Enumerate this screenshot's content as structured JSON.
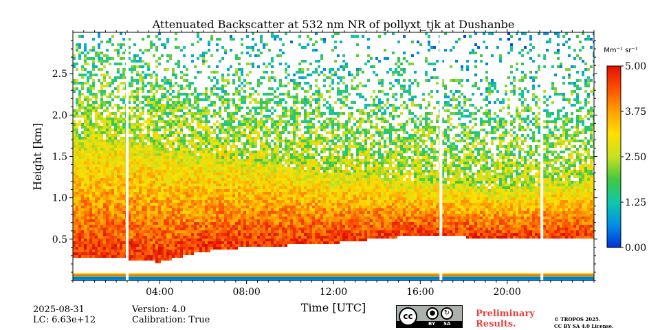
{
  "chart_data": {
    "type": "heatmap",
    "title": "Attenuated Backscatter at 532 nm NR of pollyxt_tjk at Dushanbe",
    "xlabel": "Time [UTC]",
    "ylabel": "Height [km]",
    "xlim_hours": [
      0,
      24
    ],
    "ylim_km": [
      0,
      3.0
    ],
    "x_ticks": [
      {
        "value": 4,
        "label": "04:00"
      },
      {
        "value": 8,
        "label": "08:00"
      },
      {
        "value": 12,
        "label": "12:00"
      },
      {
        "value": 16,
        "label": "16:00"
      },
      {
        "value": 20,
        "label": "20:00"
      }
    ],
    "y_ticks": [
      {
        "value": 0.5,
        "label": "0.5"
      },
      {
        "value": 1.0,
        "label": "1.0"
      },
      {
        "value": 1.5,
        "label": "1.5"
      },
      {
        "value": 2.0,
        "label": "2.0"
      },
      {
        "value": 2.5,
        "label": "2.5"
      }
    ],
    "colorbar": {
      "unit_label": "Mm⁻¹ sr⁻¹",
      "range": [
        0.0,
        5.0
      ],
      "ticks": [
        {
          "value": 0.0,
          "label": "0.00"
        },
        {
          "value": 1.25,
          "label": "1.25"
        },
        {
          "value": 2.5,
          "label": "2.50"
        },
        {
          "value": 3.75,
          "label": "3.75"
        },
        {
          "value": 5.0,
          "label": "5.00"
        }
      ],
      "colormap": [
        "#0030d8",
        "#0090e8",
        "#10c8a8",
        "#40c840",
        "#c8e020",
        "#ffe000",
        "#ffa000",
        "#ff5000",
        "#e01000"
      ]
    },
    "data_gaps_hours": [
      2.5,
      16.95,
      21.6
    ],
    "profile_features": [
      {
        "hour": 0,
        "aerosol_top_km": 1.7,
        "lowest_signal_km": 0.27
      },
      {
        "hour": 2,
        "aerosol_top_km": 1.7,
        "lowest_signal_km": 0.27
      },
      {
        "hour": 4,
        "aerosol_top_km": 1.6,
        "lowest_signal_km": 0.22
      },
      {
        "hour": 6,
        "aerosol_top_km": 1.5,
        "lowest_signal_km": 0.35
      },
      {
        "hour": 8,
        "aerosol_top_km": 1.45,
        "lowest_signal_km": 0.4
      },
      {
        "hour": 12,
        "aerosol_top_km": 1.3,
        "lowest_signal_km": 0.45
      },
      {
        "hour": 16,
        "aerosol_top_km": 1.2,
        "lowest_signal_km": 0.55
      },
      {
        "hour": 20,
        "aerosol_top_km": 1.1,
        "lowest_signal_km": 0.5
      },
      {
        "hour": 24,
        "aerosol_top_km": 1.2,
        "lowest_signal_km": 0.5
      }
    ]
  },
  "footer": {
    "date": "2025-08-31",
    "lc": "LC: 6.63e+12",
    "version": "Version: 4.0",
    "calibration": "Calibration: True",
    "preliminary_line1": "Preliminary",
    "preliminary_line2": "Results.",
    "copyright_line1": "© TROPOS 2025.",
    "copyright_line2": "CC BY SA 4.0 License.",
    "license_badge": {
      "cc": "cc",
      "by": "BY",
      "sa": "SA"
    }
  },
  "colors": {
    "preliminary": "#e8413c",
    "badge_bg": "#aab2ab"
  }
}
